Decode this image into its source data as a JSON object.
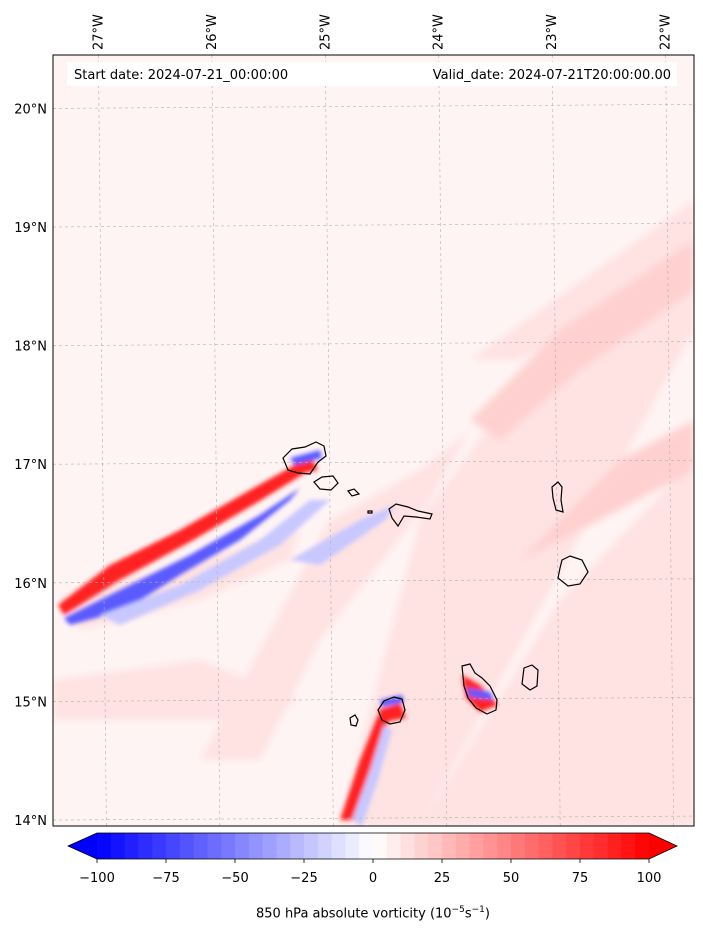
{
  "header": {
    "start_date": "Start date: 2024-07-21_00:00:00",
    "valid_date": "Valid_date: 2024-07-21T20:00:00.00"
  },
  "map": {
    "lon_range": [
      -27.4,
      -21.75
    ],
    "lat_range": [
      13.95,
      20.45
    ],
    "lon_ticks": [
      {
        "value": -27,
        "label": "27°W"
      },
      {
        "value": -26,
        "label": "26°W"
      },
      {
        "value": -25,
        "label": "25°W"
      },
      {
        "value": -24,
        "label": "24°W"
      },
      {
        "value": -23,
        "label": "23°W"
      },
      {
        "value": -22,
        "label": "22°W"
      }
    ],
    "lat_ticks": [
      {
        "value": 14,
        "label": "14°N"
      },
      {
        "value": 15,
        "label": "15°N"
      },
      {
        "value": 16,
        "label": "16°N"
      },
      {
        "value": 17,
        "label": "17°N"
      },
      {
        "value": 18,
        "label": "18°N"
      },
      {
        "value": 19,
        "label": "19°N"
      },
      {
        "value": 20,
        "label": "20°N"
      }
    ],
    "grid": true,
    "field_colors": {
      "background": "#fff4f4",
      "light_pink": "#ffe2e2",
      "pink": "#ffd0d0",
      "red": "#ff2020",
      "blue": "#5a5aff",
      "light_blue": "#c8c8ff"
    }
  },
  "colorbar": {
    "min": -100,
    "max": 100,
    "ticks": [
      {
        "value": -100,
        "label": "−100"
      },
      {
        "value": -75,
        "label": "−75"
      },
      {
        "value": -50,
        "label": "−50"
      },
      {
        "value": -25,
        "label": "−25"
      },
      {
        "value": 0,
        "label": "0"
      },
      {
        "value": 25,
        "label": "25"
      },
      {
        "value": 50,
        "label": "50"
      },
      {
        "value": 75,
        "label": "75"
      },
      {
        "value": 100,
        "label": "100"
      }
    ],
    "extend": "both",
    "label_main": "850 hPa absolute vorticity (10",
    "label_exp1": "−5",
    "label_mid": "s",
    "label_exp2": "−1",
    "label_end": ")"
  }
}
